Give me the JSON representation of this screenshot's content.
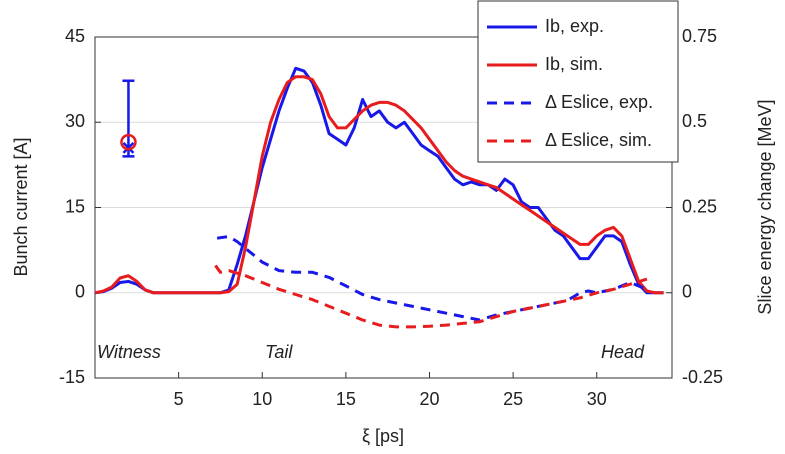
{
  "chart_data": {
    "type": "line",
    "x_label": "ξ [ps]",
    "y_label": "Bunch current [A]",
    "y2_label": "Slice energy change [MeV]",
    "xlim": [
      0,
      34.5
    ],
    "xticks": [
      5,
      10,
      15,
      20,
      25,
      30
    ],
    "ylim": [
      -15,
      45
    ],
    "yticks": [
      -15,
      0,
      15,
      30,
      45
    ],
    "y2lim": [
      -0.25,
      0.75
    ],
    "y2ticks": [
      -0.25,
      0,
      0.25,
      0.5,
      0.75
    ],
    "grid": true,
    "legend": "upper right",
    "x": [
      0,
      0.5,
      1,
      1.5,
      2,
      2.5,
      3,
      3.5,
      4,
      4.5,
      5,
      5.5,
      6,
      6.5,
      7,
      7.5,
      8,
      8.5,
      9,
      9.5,
      10,
      10.5,
      11,
      11.5,
      12,
      12.5,
      13,
      13.5,
      14,
      14.5,
      15,
      15.5,
      16,
      16.5,
      17,
      17.5,
      18,
      18.5,
      19,
      19.5,
      20,
      20.5,
      21,
      21.5,
      22,
      22.5,
      23,
      23.5,
      24,
      24.5,
      25,
      25.5,
      26,
      26.5,
      27,
      27.5,
      28,
      28.5,
      29,
      29.5,
      30,
      30.5,
      31,
      31.5,
      32,
      32.5,
      33,
      33.5,
      34
    ],
    "series": [
      {
        "name": "Ib, exp.",
        "color": "#1818e8",
        "style": "solid",
        "values": [
          0,
          0.2,
          0.8,
          1.8,
          2,
          1.5,
          0.5,
          0,
          0,
          0,
          0,
          0,
          0,
          0,
          0,
          0,
          0.5,
          5,
          10,
          16,
          22,
          27,
          32,
          36,
          39.5,
          39,
          37,
          33,
          28,
          27,
          26,
          29,
          34,
          31,
          32,
          30,
          29,
          30,
          28,
          26,
          25,
          24,
          22,
          20,
          19,
          19.5,
          19,
          19,
          18,
          20,
          19,
          16,
          15,
          15,
          13,
          11,
          10,
          8,
          6,
          6,
          8,
          10,
          10,
          9,
          5,
          1.5,
          0,
          0,
          0
        ]
      },
      {
        "name": "Ib, sim.",
        "color": "#e81c1c",
        "style": "solid",
        "values": [
          0,
          0.3,
          1,
          2.6,
          3,
          2,
          0.5,
          0,
          0,
          0,
          0,
          0,
          0,
          0,
          0,
          0,
          0.2,
          1.5,
          8,
          16,
          24,
          30,
          34,
          37,
          38,
          38,
          37.5,
          35,
          31,
          29,
          29,
          30.5,
          32,
          33,
          33.5,
          33.5,
          33,
          32,
          30.5,
          29,
          27,
          25,
          23,
          21.5,
          20.5,
          20,
          19.5,
          19,
          18.5,
          17.5,
          16.5,
          15.5,
          14.5,
          13.5,
          12.5,
          11.5,
          10.5,
          9.5,
          8.5,
          8.5,
          10,
          11,
          11.5,
          10,
          6,
          2,
          0.3,
          0,
          0
        ]
      },
      {
        "name": "Δ Eslice, exp.",
        "color": "#1818e8",
        "style": "dashed",
        "axis": "y2",
        "x": [
          7.3,
          8,
          8.5,
          9,
          9.5,
          10,
          11,
          12,
          13,
          14,
          15,
          16,
          17,
          18,
          19,
          20,
          21,
          22,
          23,
          24,
          25,
          26,
          27,
          28,
          28.5,
          29,
          29.5,
          30,
          31,
          32,
          33
        ],
        "values": [
          0.16,
          0.165,
          0.15,
          0.13,
          0.11,
          0.09,
          0.065,
          0.06,
          0.06,
          0.045,
          0.02,
          -0.005,
          -0.02,
          -0.03,
          -0.04,
          -0.05,
          -0.06,
          -0.07,
          -0.08,
          -0.065,
          -0.055,
          -0.045,
          -0.035,
          -0.025,
          -0.015,
          0,
          0.005,
          0,
          0.01,
          0.03,
          0.01
        ]
      },
      {
        "name": "Δ Eslice, sim.",
        "color": "#e81c1c",
        "style": "dashed",
        "axis": "y2",
        "x": [
          7.2,
          7.5,
          8,
          9,
          10,
          11,
          12,
          13,
          14,
          15,
          16,
          17,
          18,
          19,
          20,
          21,
          22,
          23,
          24,
          25,
          26,
          27,
          28,
          29,
          30,
          31,
          32,
          33
        ],
        "values": [
          0.08,
          0.06,
          0.065,
          0.05,
          0.03,
          0.01,
          -0.005,
          -0.02,
          -0.04,
          -0.06,
          -0.08,
          -0.095,
          -0.1,
          -0.1,
          -0.098,
          -0.095,
          -0.09,
          -0.085,
          -0.07,
          -0.055,
          -0.045,
          -0.035,
          -0.025,
          -0.015,
          0,
          0.01,
          0.025,
          0.04
        ]
      }
    ],
    "error_bar": {
      "x": 2,
      "value": 25.5,
      "lower": 24,
      "upper": 37.3,
      "color": "#1818e8"
    },
    "marker": {
      "x": 2,
      "value": 26.5,
      "color": "#e81c1c"
    },
    "annotations": [
      "Witness",
      "Tail",
      "Head"
    ]
  }
}
